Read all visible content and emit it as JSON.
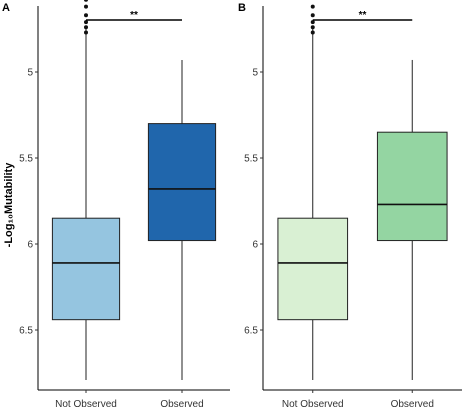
{
  "ylabel": "-Log₁₀Mutability",
  "chart_data": [
    {
      "panel": "A",
      "type": "box",
      "categories": [
        "Not Observed",
        "Observed"
      ],
      "y_reversed": true,
      "ylim": [
        4.65,
        6.8
      ],
      "yticks": [
        5,
        5.5,
        6,
        6.5
      ],
      "ytick_labels": [
        "5",
        "5.5",
        "6",
        "6.5"
      ],
      "grid": false,
      "boxes": [
        {
          "category": "Not Observed",
          "whisker_low": 4.75,
          "q1": 5.85,
          "median": 6.11,
          "q3": 6.44,
          "whisker_high": 6.8,
          "outliers": [
            4.58,
            4.62,
            4.67,
            4.71,
            4.74,
            4.77
          ],
          "color": "#95c5e0"
        },
        {
          "category": "Observed",
          "whisker_low": 4.93,
          "q1": 5.3,
          "median": 5.68,
          "q3": 5.98,
          "whisker_high": 6.8,
          "outliers": [],
          "color": "#2066ac"
        }
      ],
      "significance": {
        "from": "Not Observed",
        "to": "Observed",
        "y": 4.45,
        "label": "**"
      }
    },
    {
      "panel": "B",
      "type": "box",
      "categories": [
        "Not Observed",
        "Observed"
      ],
      "y_reversed": true,
      "ylim": [
        4.65,
        6.8
      ],
      "yticks": [
        5,
        5.5,
        6,
        6.5
      ],
      "ytick_labels": [
        "5",
        "5.5",
        "6",
        "6.5"
      ],
      "grid": false,
      "boxes": [
        {
          "category": "Not Observed",
          "whisker_low": 4.75,
          "q1": 5.85,
          "median": 6.11,
          "q3": 6.44,
          "whisker_high": 6.8,
          "outliers": [
            4.57,
            4.62,
            4.67,
            4.71,
            4.74,
            4.77
          ],
          "color": "#d9f0d3"
        },
        {
          "category": "Observed",
          "whisker_low": 4.93,
          "q1": 5.35,
          "median": 5.77,
          "q3": 5.98,
          "whisker_high": 6.8,
          "outliers": [],
          "color": "#94d5a2"
        }
      ],
      "significance": {
        "from": "Not Observed",
        "to": "Observed",
        "y": 4.45,
        "label": "**"
      }
    }
  ]
}
